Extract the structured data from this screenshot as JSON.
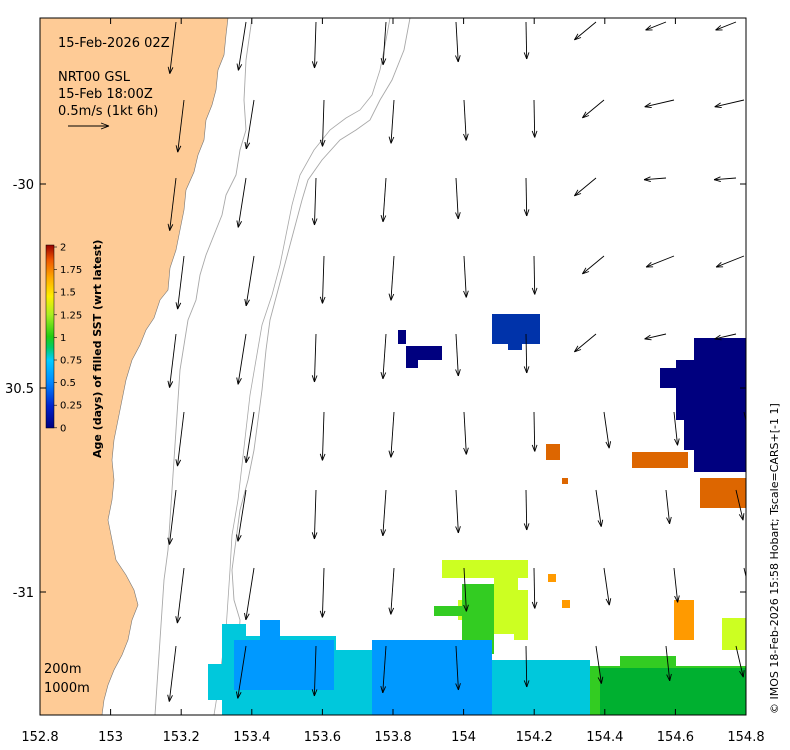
{
  "map": {
    "timestamp": "15-Feb-2026 02Z",
    "current_product": "NRT00 GSL",
    "current_time": "15-Feb 18:00Z",
    "current_scale": "0.5m/s (1kt 6h)",
    "contour_200": "200m",
    "contour_1000": "1000m",
    "credit": "© IMOS 18-Feb-2026 15:58 Hobart; Tscale=CARS+[-1 1]",
    "x_ticks": [
      "152.8",
      "153",
      "153.2",
      "153.4",
      "153.6",
      "153.8",
      "154",
      "154.2",
      "154.4",
      "154.6",
      "154.8"
    ],
    "y_ticks": [
      "-30",
      "30.5",
      "-31"
    ],
    "colorbar": {
      "label": "Age (days) of filled SST (wrt latest)",
      "ticks": [
        "2",
        "1.75",
        "1.5",
        "1.25",
        "1",
        "0.75",
        "0.5",
        "0.25",
        "0"
      ],
      "range": [
        0,
        2
      ]
    },
    "colors": {
      "land": "#fecb96",
      "ocean": "#ffffff",
      "contour": "#a8a8a8",
      "age_0": "#00007f",
      "age_0_1": "#0033aa",
      "age_0_4": "#0099ff",
      "age_0_5": "#00c8dc",
      "age_0_8": "#00b030",
      "age_1": "#33cc22",
      "age_1_3": "#ccff22",
      "age_1_6": "#ff9a00",
      "age_1_8": "#dd6600"
    }
  }
}
